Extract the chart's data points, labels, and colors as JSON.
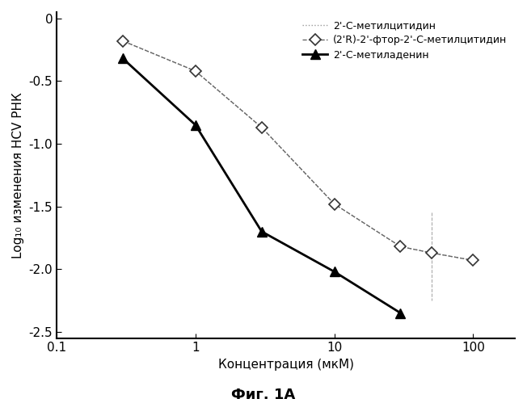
{
  "series1_label": "2'-С-метилцитидин",
  "series1_x": [
    0.3,
    1.0,
    3.0,
    10.0,
    30.0,
    50.0,
    100.0
  ],
  "series1_y": [
    -0.18,
    -0.42,
    -0.87,
    -1.48,
    -1.82,
    -1.87,
    -1.93
  ],
  "series1_linestyle": "dotted",
  "series1_color": "#999999",
  "series2_label": "(2'R)-2'-фтор-2'-С-метилцитидин",
  "series2_x": [
    0.3,
    1.0,
    3.0,
    10.0,
    30.0,
    50.0,
    100.0
  ],
  "series2_y": [
    -0.18,
    -0.42,
    -0.87,
    -1.48,
    -1.82,
    -1.87,
    -1.93
  ],
  "series2_linestyle": "dashed",
  "series2_color": "#666666",
  "series3_label": "2'-С-метиладенин",
  "series3_x": [
    0.3,
    1.0,
    3.0,
    10.0,
    30.0
  ],
  "series3_y": [
    -0.32,
    -0.85,
    -1.7,
    -2.02,
    -2.35
  ],
  "series3_linestyle": "solid",
  "series3_color": "#000000",
  "vline_x": 50,
  "vline_color": "#aaaaaa",
  "xlabel": "Концентрация (мкМ)",
  "ylabel": "Log₁₀ изменения HCV РНК",
  "caption": "Фиг. 1А",
  "xlim": [
    0.15,
    200
  ],
  "ylim": [
    -2.55,
    0.05
  ],
  "yticks": [
    0.0,
    -0.5,
    -1.0,
    -1.5,
    -2.0,
    -2.5
  ],
  "xticks": [
    0.1,
    1,
    10,
    100
  ],
  "xticklabels": [
    "0.1",
    "1",
    "10",
    "100"
  ],
  "background_color": "#ffffff",
  "legend_fontsize": 9,
  "axis_fontsize": 11,
  "title_fontsize": 13
}
